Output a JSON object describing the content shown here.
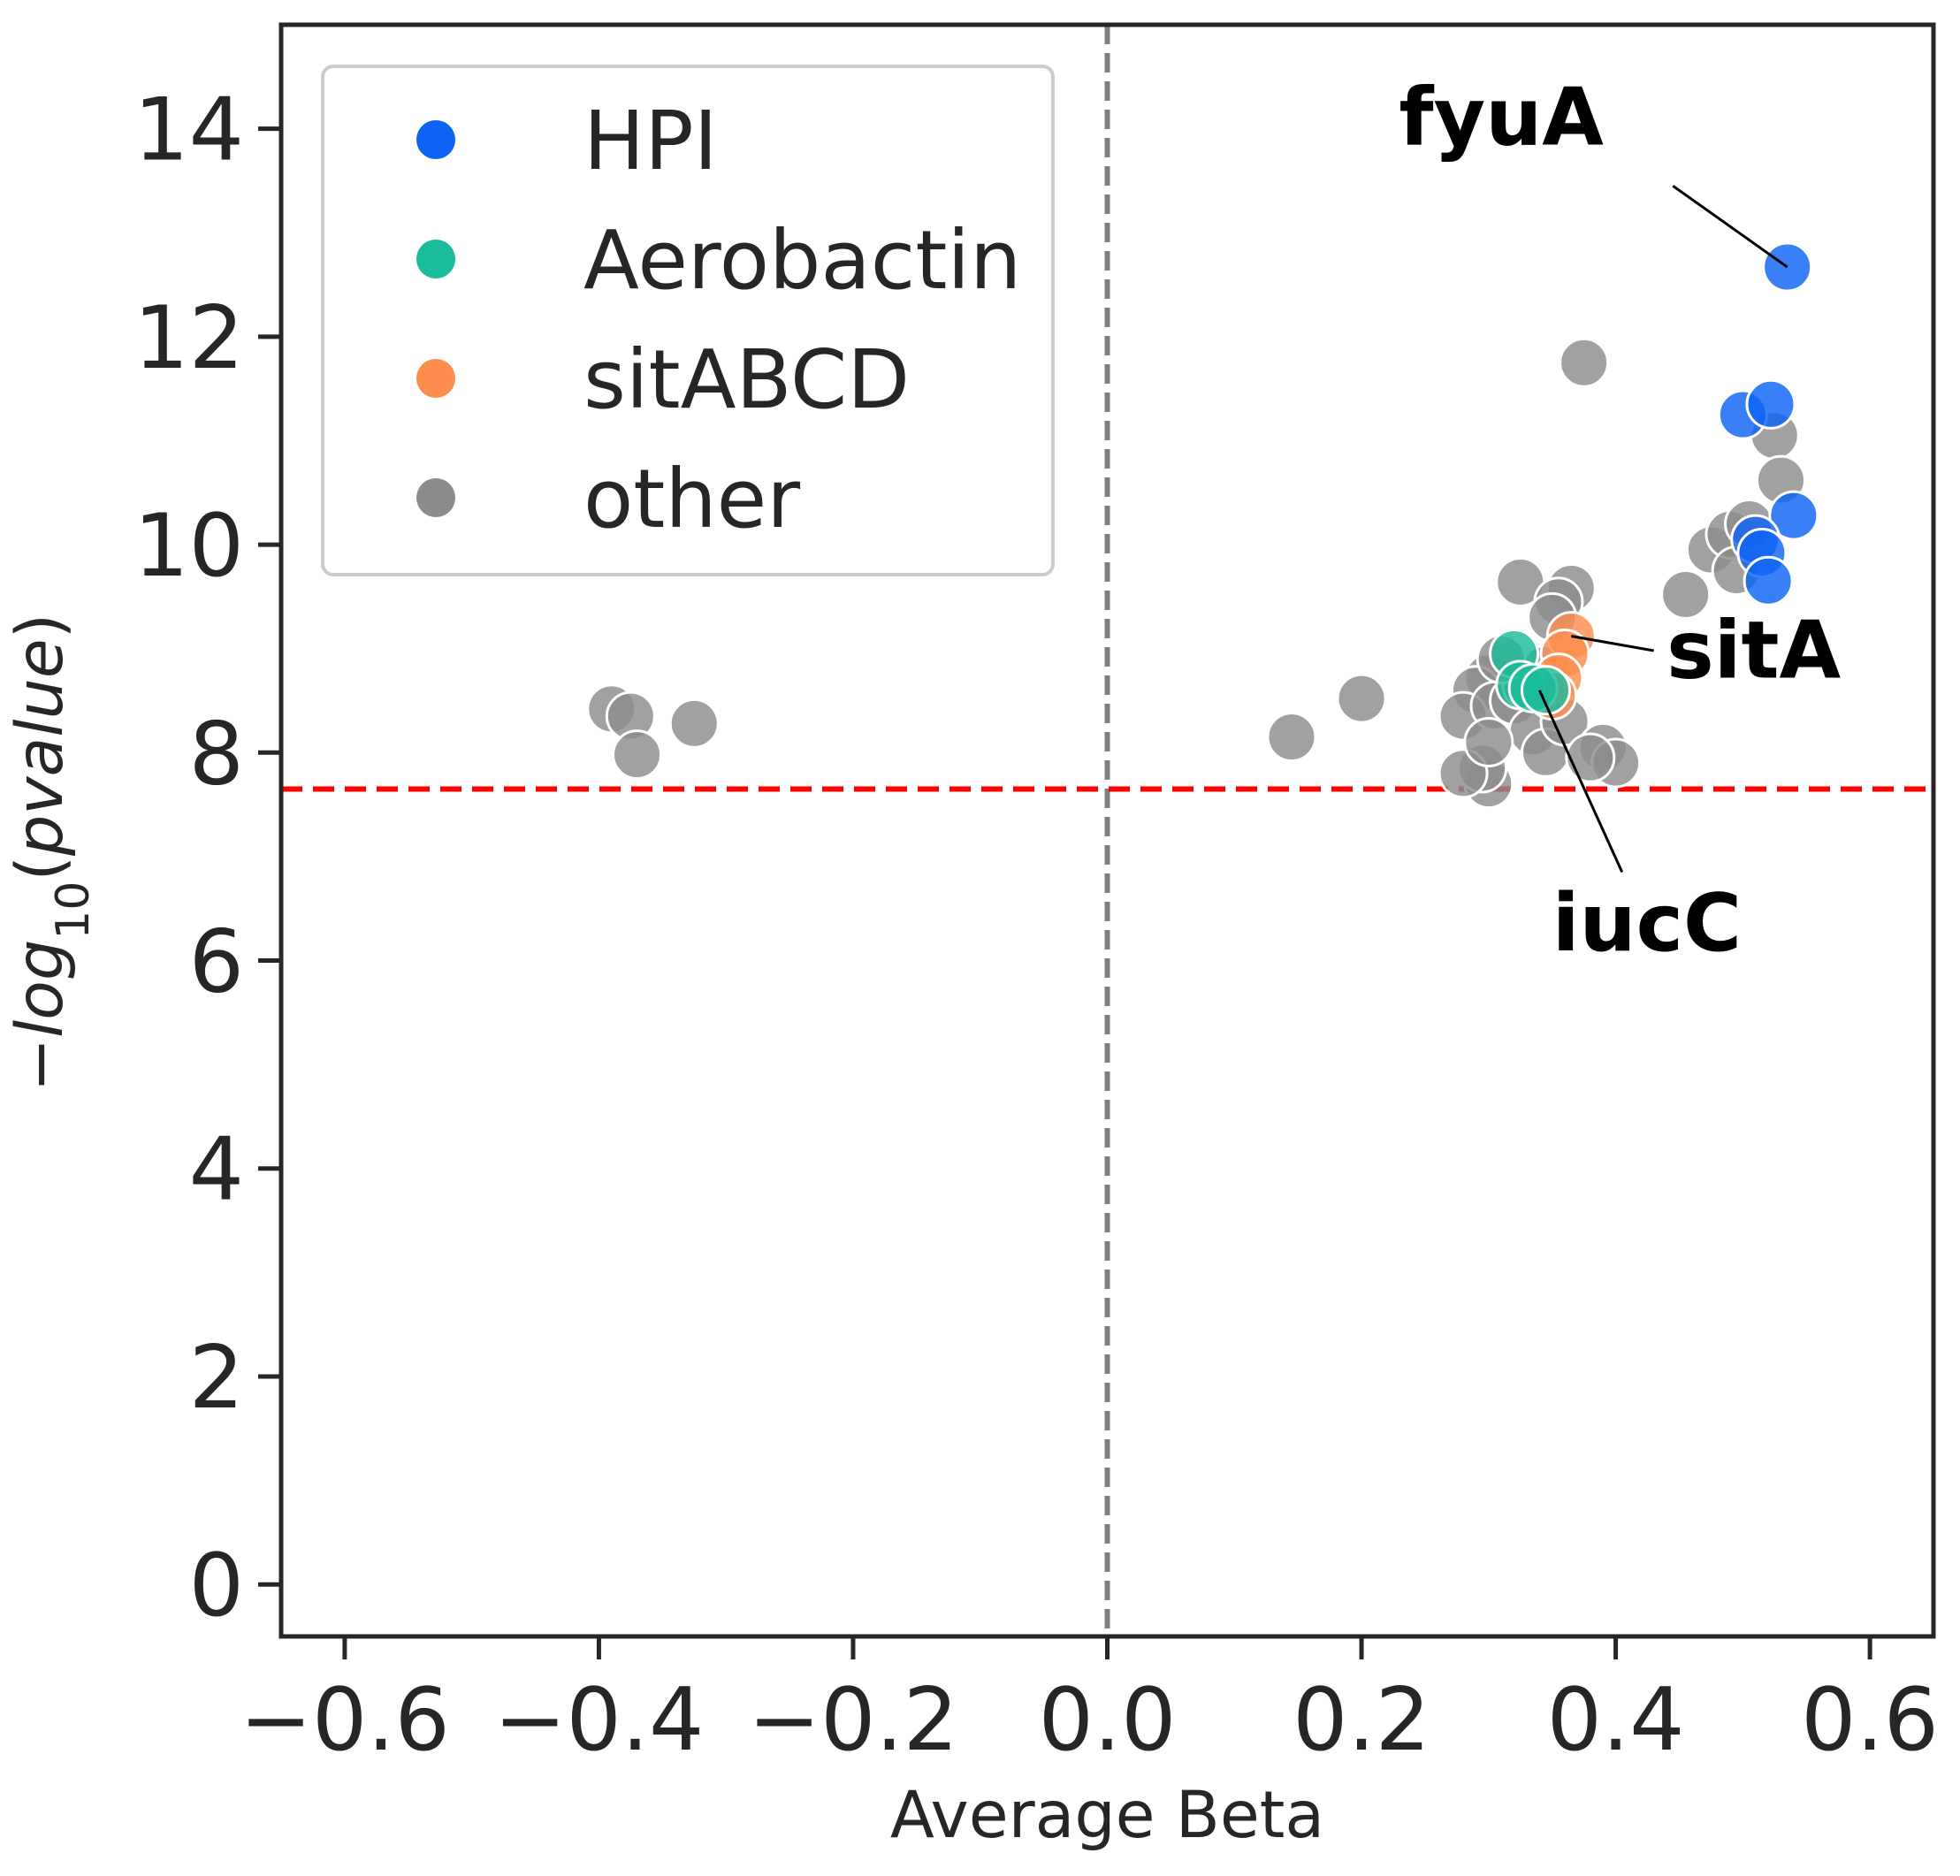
{
  "chart_data": {
    "type": "scatter",
    "title": "",
    "xlabel": "Average Beta",
    "ylabel_parts": [
      "−",
      "log",
      "10",
      "(",
      "pvalue",
      ")"
    ],
    "xlim": [
      -0.65,
      0.65
    ],
    "ylim": [
      -0.5,
      15
    ],
    "xticks": [
      -0.6,
      -0.4,
      -0.2,
      0.0,
      0.2,
      0.4,
      0.6
    ],
    "xtick_labels": [
      "−0.6",
      "−0.4",
      "−0.2",
      "0.0",
      "0.2",
      "0.4",
      "0.6"
    ],
    "yticks": [
      0,
      2,
      4,
      6,
      8,
      10,
      12,
      14
    ],
    "ytick_labels": [
      "0",
      "2",
      "4",
      "6",
      "8",
      "10",
      "12",
      "14"
    ],
    "grid": false,
    "legend_position": "upper left",
    "significance_threshold_y": 7.65,
    "reference_line_x": 0.0,
    "colors": {
      "threshold_line": "#ff0000",
      "reference_line": "#808080",
      "axes": "#262626",
      "marker_edge": "#ffffff"
    },
    "series": [
      {
        "name": "other",
        "color": "#8c8c8c",
        "points": [
          [
            -0.39,
            8.42
          ],
          [
            -0.375,
            8.35
          ],
          [
            -0.37,
            7.98
          ],
          [
            -0.325,
            8.28
          ],
          [
            0.145,
            8.15
          ],
          [
            0.2,
            8.52
          ],
          [
            0.325,
            9.64
          ],
          [
            0.365,
            9.58
          ],
          [
            0.355,
            9.45
          ],
          [
            0.35,
            9.3
          ],
          [
            0.375,
            11.75
          ],
          [
            0.3,
            8.72
          ],
          [
            0.29,
            8.6
          ],
          [
            0.28,
            8.35
          ],
          [
            0.305,
            8.45
          ],
          [
            0.32,
            8.5
          ],
          [
            0.335,
            8.2
          ],
          [
            0.345,
            8.0
          ],
          [
            0.36,
            8.3
          ],
          [
            0.39,
            8.05
          ],
          [
            0.4,
            7.9
          ],
          [
            0.38,
            7.95
          ],
          [
            0.3,
            7.7
          ],
          [
            0.295,
            7.85
          ],
          [
            0.28,
            7.8
          ],
          [
            0.3,
            8.1
          ],
          [
            0.33,
            8.65
          ],
          [
            0.345,
            8.8
          ],
          [
            0.31,
            8.9
          ],
          [
            0.455,
            9.52
          ],
          [
            0.475,
            9.95
          ],
          [
            0.49,
            10.1
          ],
          [
            0.495,
            9.75
          ],
          [
            0.505,
            10.2
          ],
          [
            0.525,
            11.05
          ],
          [
            0.53,
            10.62
          ]
        ]
      },
      {
        "name": "sitABCD",
        "color": "#fc8d4e",
        "points": [
          [
            0.365,
            9.12
          ],
          [
            0.36,
            8.95
          ],
          [
            0.355,
            8.72
          ],
          [
            0.35,
            8.55
          ]
        ]
      },
      {
        "name": "Aerobactin",
        "color": "#1abc9c",
        "points": [
          [
            0.32,
            8.95
          ],
          [
            0.325,
            8.65
          ],
          [
            0.335,
            8.62
          ],
          [
            0.345,
            8.6
          ]
        ]
      },
      {
        "name": "HPI",
        "color": "#0d64f4",
        "points": [
          [
            0.535,
            12.67
          ],
          [
            0.5,
            11.25
          ],
          [
            0.522,
            11.35
          ],
          [
            0.54,
            10.28
          ],
          [
            0.51,
            10.05
          ],
          [
            0.515,
            9.92
          ],
          [
            0.52,
            9.65
          ]
        ]
      }
    ],
    "annotations": [
      {
        "text": "fyuA",
        "target": [
          0.535,
          12.67
        ],
        "text_pos": [
          0.31,
          13.85
        ],
        "line_start": [
          0.445,
          13.45
        ],
        "anchor": "middle"
      },
      {
        "text": "sitA",
        "target": [
          0.365,
          9.12
        ],
        "text_pos": [
          0.44,
          8.72
        ],
        "line_start": [
          0.43,
          8.98
        ],
        "anchor": "start"
      },
      {
        "text": "iucC",
        "target": [
          0.34,
          8.6
        ],
        "text_pos": [
          0.35,
          6.1
        ],
        "line_start": [
          0.405,
          6.85
        ],
        "anchor": "start"
      }
    ]
  }
}
